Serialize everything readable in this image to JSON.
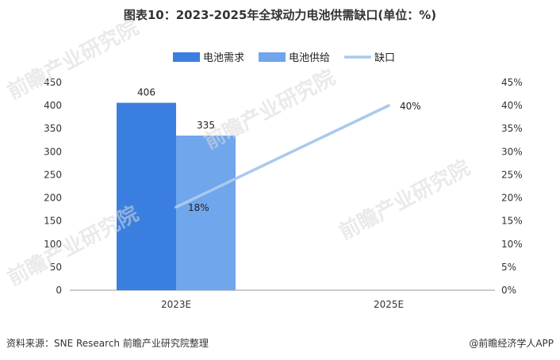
{
  "title": "图表10：2023-2025年全球动力电池供需缺口(单位：%)",
  "colors": {
    "demand": "#3a7fe0",
    "supply": "#6fa6ec",
    "gap": "#a9c9ee",
    "axis": "#999999"
  },
  "chart_data": {
    "type": "bar",
    "categories": [
      "2023E",
      "2025E"
    ],
    "series": [
      {
        "name": "电池需求",
        "type": "bar",
        "axis": "left",
        "values": [
          406,
          null
        ],
        "labels": [
          "406",
          ""
        ]
      },
      {
        "name": "电池供给",
        "type": "bar",
        "axis": "left",
        "values": [
          335,
          null
        ],
        "labels": [
          "335",
          ""
        ]
      },
      {
        "name": "缺口",
        "type": "line",
        "axis": "right",
        "values": [
          18,
          40
        ],
        "labels": [
          "18%",
          "40%"
        ]
      }
    ],
    "y_left": {
      "min": 0,
      "max": 450,
      "ticks": [
        "0",
        "50",
        "100",
        "150",
        "200",
        "250",
        "300",
        "350",
        "400",
        "450"
      ]
    },
    "y_right": {
      "min": 0,
      "max": 45,
      "ticks": [
        "0%",
        "5%",
        "10%",
        "15%",
        "20%",
        "25%",
        "30%",
        "35%",
        "40%",
        "45%"
      ]
    },
    "legend_position": "top-center",
    "grid": false
  },
  "footer": {
    "source": "资料来源：SNE Research 前瞻产业研究院整理",
    "brand": "@前瞻经济学人APP"
  },
  "watermark": "前瞻产业研究院"
}
